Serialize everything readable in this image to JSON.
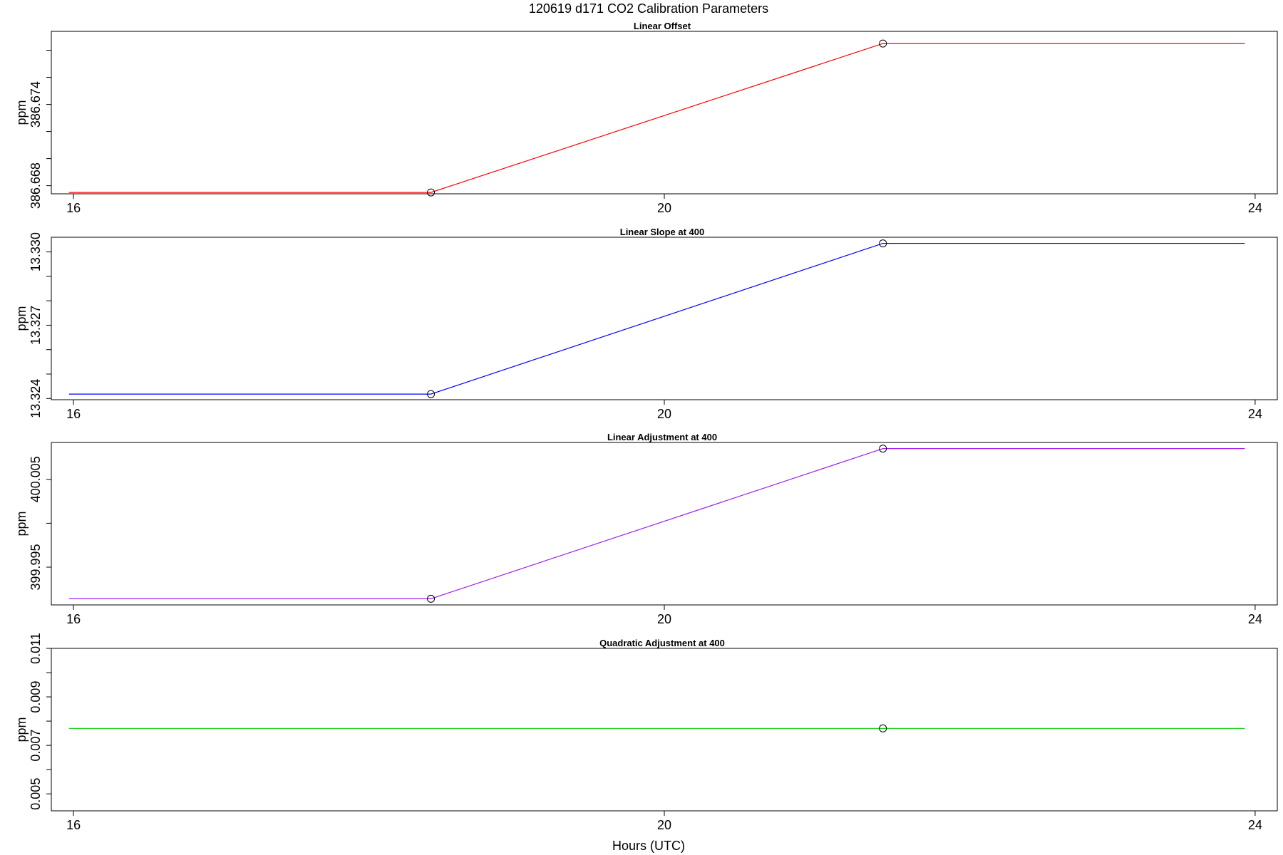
{
  "figure": {
    "title": "120619   d171   CO2 Calibration Parameters",
    "xlabel": "Hours (UTC)"
  },
  "chart_data": [
    {
      "type": "line",
      "title": "Linear Offset",
      "ylabel": "ppm",
      "xlim": [
        15.85,
        24.15
      ],
      "ylim": [
        386.6674,
        386.6794
      ],
      "xticks": [
        16,
        20,
        24
      ],
      "xtick_labels": [
        "16",
        "20",
        "24"
      ],
      "yticks": [
        386.668,
        386.67,
        386.672,
        386.674,
        386.676,
        386.678
      ],
      "ytick_labels": [
        "386.668",
        "",
        "",
        "386.674",
        "",
        ""
      ],
      "grid": false,
      "color": "#ff0000",
      "x": [
        15.97,
        18.42,
        21.48,
        23.93
      ],
      "y": [
        386.6675,
        386.6675,
        386.6785,
        386.6785
      ],
      "marker_x": [
        18.42,
        21.48
      ],
      "marker_y": [
        386.6675,
        386.6785
      ]
    },
    {
      "type": "line",
      "title": "Linear Slope at 400",
      "ylabel": "ppm",
      "xlim": [
        15.85,
        24.15
      ],
      "ylim": [
        13.32395,
        13.3306
      ],
      "xticks": [
        16,
        20,
        24
      ],
      "xtick_labels": [
        "16",
        "20",
        "24"
      ],
      "yticks": [
        13.324,
        13.325,
        13.326,
        13.327,
        13.328,
        13.329,
        13.33
      ],
      "ytick_labels": [
        "13.324",
        "",
        "",
        "13.327",
        "",
        "",
        "13.330"
      ],
      "grid": false,
      "color": "#0000ff",
      "x": [
        15.97,
        18.42,
        21.48,
        23.93
      ],
      "y": [
        13.32418,
        13.32418,
        13.33035,
        13.33035
      ],
      "marker_x": [
        18.42,
        21.48
      ],
      "marker_y": [
        13.32418,
        13.33035
      ]
    },
    {
      "type": "line",
      "title": "Linear Adjustment at 400",
      "ylabel": "ppm",
      "xlim": [
        15.85,
        24.15
      ],
      "ylim": [
        399.9907,
        400.0092
      ],
      "xticks": [
        16,
        20,
        24
      ],
      "xtick_labels": [
        "16",
        "20",
        "24"
      ],
      "yticks": [
        399.995,
        400.0,
        400.005
      ],
      "ytick_labels": [
        "399.995",
        "",
        "400.005"
      ],
      "grid": false,
      "color": "#a020f0",
      "x": [
        15.97,
        18.42,
        21.48,
        23.93
      ],
      "y": [
        399.9914,
        399.9914,
        400.0085,
        400.0085
      ],
      "marker_x": [
        18.42,
        21.48
      ],
      "marker_y": [
        399.9914,
        400.0085
      ]
    },
    {
      "type": "line",
      "title": "Quadratic Adjustment at 400",
      "ylabel": "ppm",
      "xlim": [
        15.85,
        24.15
      ],
      "ylim": [
        0.0043,
        0.011
      ],
      "xticks": [
        16,
        20,
        24
      ],
      "xtick_labels": [
        "16",
        "20",
        "24"
      ],
      "yticks": [
        0.005,
        0.006,
        0.007,
        0.008,
        0.009,
        0.01,
        0.011
      ],
      "ytick_labels": [
        "0.005",
        "",
        "0.007",
        "",
        "0.009",
        "",
        "0.011"
      ],
      "grid": false,
      "color": "#00cc00",
      "x": [
        15.97,
        23.93
      ],
      "y": [
        0.0077,
        0.0077
      ],
      "marker_x": [
        21.48
      ],
      "marker_y": [
        0.0077
      ]
    }
  ]
}
